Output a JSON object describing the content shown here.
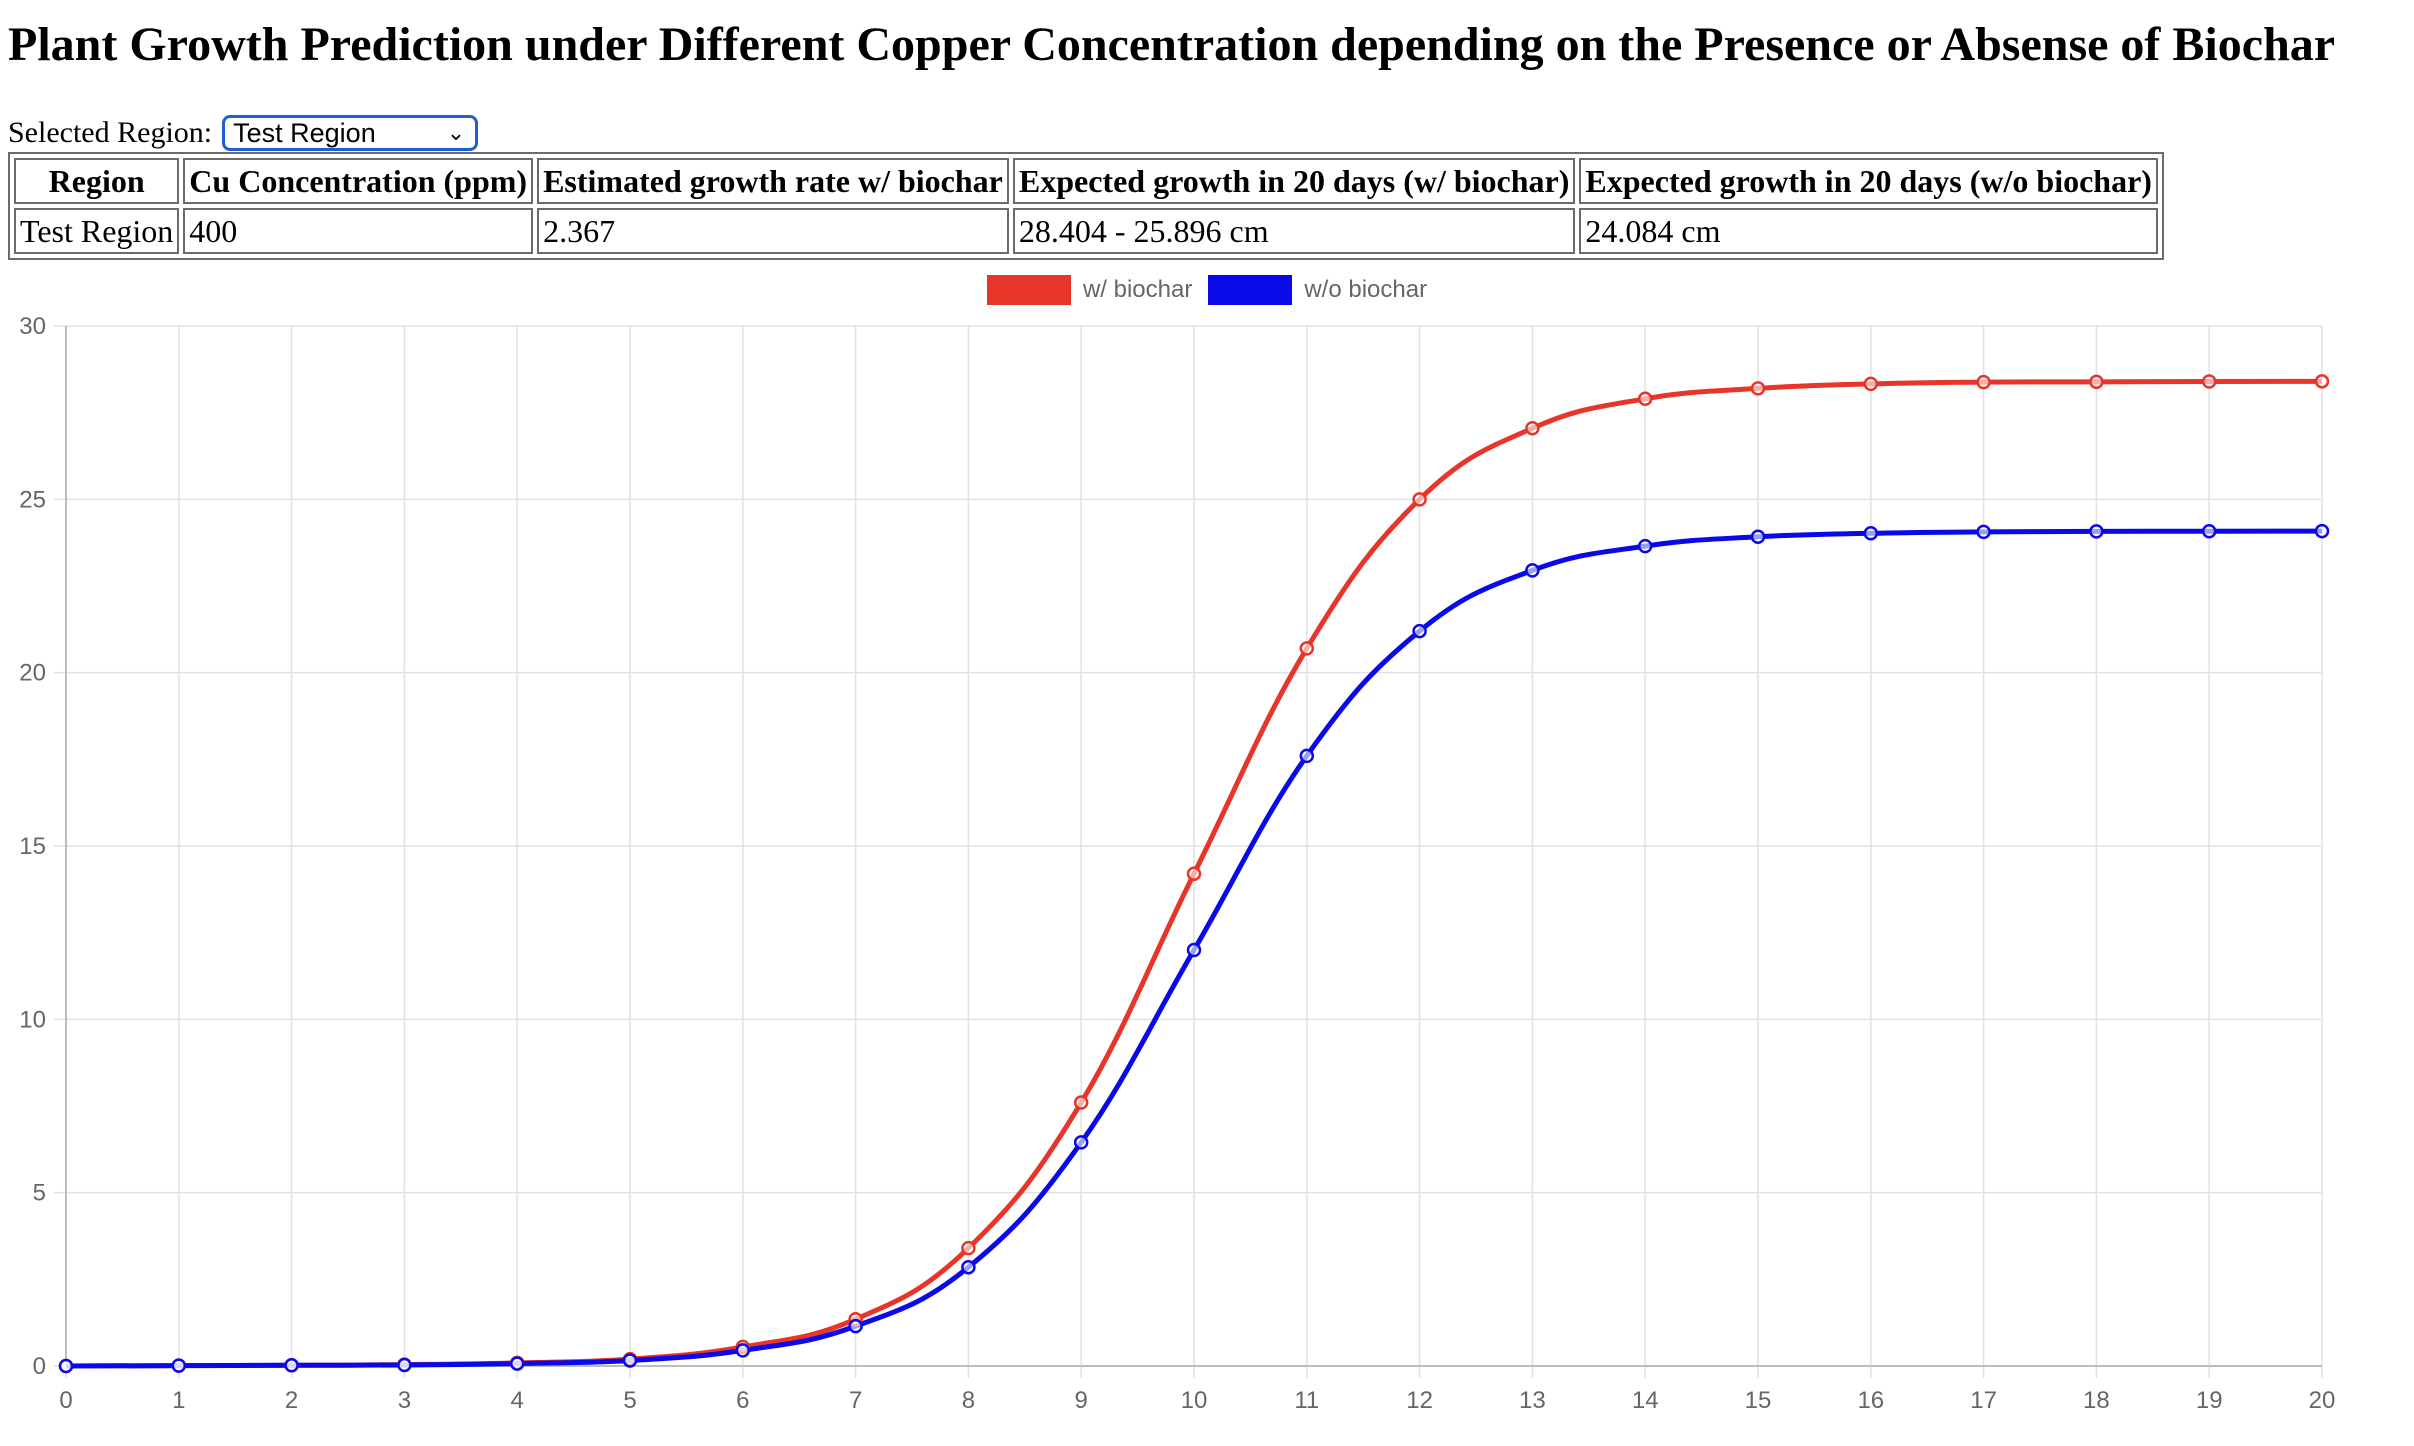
{
  "page": {
    "title": "Plant Growth Prediction under Different Copper Concentration depending on the Presence or Absense of Biochar"
  },
  "region_select": {
    "label": "Selected Region:",
    "selected": "Test Region"
  },
  "summary_table": {
    "headers": [
      "Region",
      "Cu Concentration (ppm)",
      "Estimated growth rate w/ biochar",
      "Expected growth in 20 days (w/ biochar)",
      "Expected growth in 20 days (w/o biochar)"
    ],
    "rows": [
      [
        "Test Region",
        "400",
        "2.367",
        "28.404 - 25.896 cm",
        "24.084 cm"
      ]
    ]
  },
  "chart_data": {
    "type": "line",
    "title": "",
    "xlabel": "",
    "ylabel": "",
    "x": [
      0,
      1,
      2,
      3,
      4,
      5,
      6,
      7,
      8,
      9,
      10,
      11,
      12,
      13,
      14,
      15,
      16,
      17,
      18,
      19,
      20
    ],
    "ylim": [
      0,
      30
    ],
    "yticks": [
      0,
      5,
      10,
      15,
      20,
      25,
      30
    ],
    "grid": true,
    "legend_position": "top-center",
    "series": [
      {
        "name": "w/ biochar",
        "color": "#e8352a",
        "values": [
          0.0,
          0.01,
          0.02,
          0.04,
          0.09,
          0.2,
          0.55,
          1.35,
          3.4,
          7.6,
          14.2,
          20.7,
          25.0,
          27.05,
          27.9,
          28.2,
          28.33,
          28.38,
          28.39,
          28.4,
          28.404
        ]
      },
      {
        "name": "w/o biochar",
        "color": "#0a0ae8",
        "values": [
          0.0,
          0.01,
          0.02,
          0.03,
          0.07,
          0.16,
          0.45,
          1.15,
          2.85,
          6.45,
          12.0,
          17.6,
          21.2,
          22.95,
          23.65,
          23.92,
          24.02,
          24.06,
          24.075,
          24.08,
          24.084
        ]
      }
    ]
  }
}
